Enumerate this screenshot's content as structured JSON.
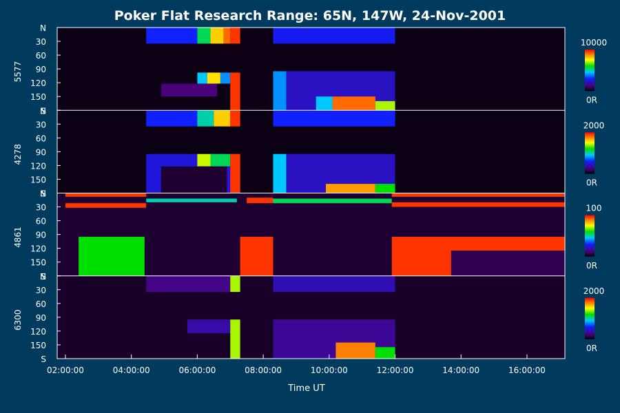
{
  "chart_data": {
    "type": "heatmap",
    "title": "Poker Flat Research Range: 65N, 147W, 24-Nov-2001",
    "xlabel": "Time UT",
    "x_ticks": [
      "02:00:00",
      "04:00:00",
      "06:00:00",
      "08:00:00",
      "10:00:00",
      "12:00:00",
      "14:00:00",
      "16:00:00"
    ],
    "x_tick_hours": [
      2,
      4,
      6,
      8,
      10,
      12,
      14,
      16
    ],
    "xlim_hours": [
      1.75,
      17.15
    ],
    "y_ticks": [
      "N",
      "30",
      "60",
      "90",
      "120",
      "150",
      "S"
    ],
    "y_tick_values": [
      0,
      30,
      60,
      90,
      120,
      150,
      180
    ],
    "ylim": [
      0,
      180
    ],
    "panels": [
      {
        "name": "5577",
        "colorbar": {
          "max_label": "10000",
          "min_label": "0R"
        },
        "blocks": [
          {
            "t": [
              1.75,
              17.15
            ],
            "y": [
              0,
              180
            ],
            "c": 0.02
          },
          {
            "t": [
              4.45,
              6.0
            ],
            "y": [
              0,
              35
            ],
            "c": 0.3
          },
          {
            "t": [
              6.0,
              6.4
            ],
            "y": [
              0,
              35
            ],
            "c": 0.55
          },
          {
            "t": [
              6.4,
              6.8
            ],
            "y": [
              0,
              35
            ],
            "c": 0.8
          },
          {
            "t": [
              6.8,
              7.0
            ],
            "y": [
              0,
              35
            ],
            "c": 0.9
          },
          {
            "t": [
              7.0,
              7.3
            ],
            "y": [
              0,
              35
            ],
            "c": 0.95
          },
          {
            "t": [
              8.3,
              12.0
            ],
            "y": [
              0,
              35
            ],
            "c": 0.28
          },
          {
            "t": [
              4.45,
              12.0
            ],
            "y": [
              98,
              180
            ],
            "c": 0.02
          },
          {
            "t": [
              6.0,
              6.3
            ],
            "y": [
              98,
              122
            ],
            "c": 0.45
          },
          {
            "t": [
              6.3,
              6.7
            ],
            "y": [
              98,
              122
            ],
            "c": 0.78
          },
          {
            "t": [
              6.7,
              7.0
            ],
            "y": [
              98,
              122
            ],
            "c": 0.4
          },
          {
            "t": [
              7.0,
              7.3
            ],
            "y": [
              98,
              180
            ],
            "c": 0.95
          },
          {
            "t": [
              4.9,
              6.6
            ],
            "y": [
              122,
              150
            ],
            "c": 0.12
          },
          {
            "t": [
              8.3,
              8.7
            ],
            "y": [
              95,
              180
            ],
            "c": 0.4
          },
          {
            "t": [
              8.7,
              12.0
            ],
            "y": [
              95,
              180
            ],
            "c": 0.22
          },
          {
            "t": [
              9.6,
              10.1
            ],
            "y": [
              150,
              180
            ],
            "c": 0.45
          },
          {
            "t": [
              10.1,
              11.4
            ],
            "y": [
              150,
              180
            ],
            "c": 0.9
          },
          {
            "t": [
              11.4,
              12.0
            ],
            "y": [
              160,
              180
            ],
            "c": 0.7
          }
        ]
      },
      {
        "name": "4278",
        "colorbar": {
          "max_label": "2000",
          "min_label": "0R"
        },
        "blocks": [
          {
            "t": [
              1.75,
              17.15
            ],
            "y": [
              0,
              180
            ],
            "c": 0.02
          },
          {
            "t": [
              4.45,
              6.0
            ],
            "y": [
              0,
              35
            ],
            "c": 0.3
          },
          {
            "t": [
              6.0,
              6.5
            ],
            "y": [
              0,
              35
            ],
            "c": 0.5
          },
          {
            "t": [
              6.5,
              7.0
            ],
            "y": [
              0,
              35
            ],
            "c": 0.8
          },
          {
            "t": [
              7.0,
              7.3
            ],
            "y": [
              0,
              35
            ],
            "c": 0.95
          },
          {
            "t": [
              8.3,
              12.0
            ],
            "y": [
              0,
              35
            ],
            "c": 0.3
          },
          {
            "t": [
              4.45,
              7.3
            ],
            "y": [
              95,
              180
            ],
            "c": 0.25
          },
          {
            "t": [
              6.0,
              6.4
            ],
            "y": [
              95,
              122
            ],
            "c": 0.72
          },
          {
            "t": [
              6.4,
              7.0
            ],
            "y": [
              95,
              122
            ],
            "c": 0.55
          },
          {
            "t": [
              7.0,
              7.3
            ],
            "y": [
              95,
              180
            ],
            "c": 0.95
          },
          {
            "t": [
              4.9,
              6.9
            ],
            "y": [
              122,
              180
            ],
            "c": 0.05
          },
          {
            "t": [
              8.3,
              8.7
            ],
            "y": [
              95,
              180
            ],
            "c": 0.45
          },
          {
            "t": [
              8.7,
              12.0
            ],
            "y": [
              95,
              180
            ],
            "c": 0.22
          },
          {
            "t": [
              9.9,
              11.4
            ],
            "y": [
              160,
              180
            ],
            "c": 0.85
          },
          {
            "t": [
              11.4,
              12.0
            ],
            "y": [
              160,
              180
            ],
            "c": 0.6
          }
        ]
      },
      {
        "name": "4861",
        "colorbar": {
          "max_label": "100",
          "min_label": "0R"
        },
        "blocks": [
          {
            "t": [
              1.75,
              17.15
            ],
            "y": [
              0,
              180
            ],
            "c": 0.05
          },
          {
            "t": [
              2.0,
              4.45
            ],
            "y": [
              0,
              8
            ],
            "c": 0.95
          },
          {
            "t": [
              2.0,
              4.45
            ],
            "y": [
              22,
              32
            ],
            "c": 0.95
          },
          {
            "t": [
              4.45,
              7.2
            ],
            "y": [
              12,
              20
            ],
            "c": 0.5
          },
          {
            "t": [
              7.5,
              8.3
            ],
            "y": [
              10,
              22
            ],
            "c": 0.95
          },
          {
            "t": [
              8.3,
              11.9
            ],
            "y": [
              12,
              22
            ],
            "c": 0.55
          },
          {
            "t": [
              11.9,
              17.15
            ],
            "y": [
              0,
              8
            ],
            "c": 0.95
          },
          {
            "t": [
              11.9,
              17.15
            ],
            "y": [
              20,
              30
            ],
            "c": 0.95
          },
          {
            "t": [
              2.4,
              4.4
            ],
            "y": [
              95,
              180
            ],
            "c": 0.6
          },
          {
            "t": [
              7.3,
              8.3
            ],
            "y": [
              95,
              180
            ],
            "c": 0.95
          },
          {
            "t": [
              11.9,
              17.15
            ],
            "y": [
              95,
              125
            ],
            "c": 0.95
          },
          {
            "t": [
              11.9,
              13.7
            ],
            "y": [
              125,
              180
            ],
            "c": 0.95
          },
          {
            "t": [
              13.7,
              17.15
            ],
            "y": [
              125,
              180
            ],
            "c": 0.08
          }
        ]
      },
      {
        "name": "6300",
        "colorbar": {
          "max_label": "2000",
          "min_label": "0R"
        },
        "blocks": [
          {
            "t": [
              1.75,
              17.15
            ],
            "y": [
              0,
              180
            ],
            "c": 0.04
          },
          {
            "t": [
              4.45,
              7.0
            ],
            "y": [
              0,
              35
            ],
            "c": 0.14
          },
          {
            "t": [
              7.0,
              7.3
            ],
            "y": [
              0,
              35
            ],
            "c": 0.7
          },
          {
            "t": [
              8.3,
              12.0
            ],
            "y": [
              0,
              35
            ],
            "c": 0.2
          },
          {
            "t": [
              5.7,
              7.0
            ],
            "y": [
              95,
              125
            ],
            "c": 0.18
          },
          {
            "t": [
              7.0,
              7.3
            ],
            "y": [
              95,
              180
            ],
            "c": 0.7
          },
          {
            "t": [
              8.3,
              12.0
            ],
            "y": [
              95,
              180
            ],
            "c": 0.16
          },
          {
            "t": [
              10.2,
              11.4
            ],
            "y": [
              145,
              180
            ],
            "c": 0.88
          },
          {
            "t": [
              11.4,
              12.0
            ],
            "y": [
              155,
              180
            ],
            "c": 0.6
          }
        ]
      }
    ]
  }
}
